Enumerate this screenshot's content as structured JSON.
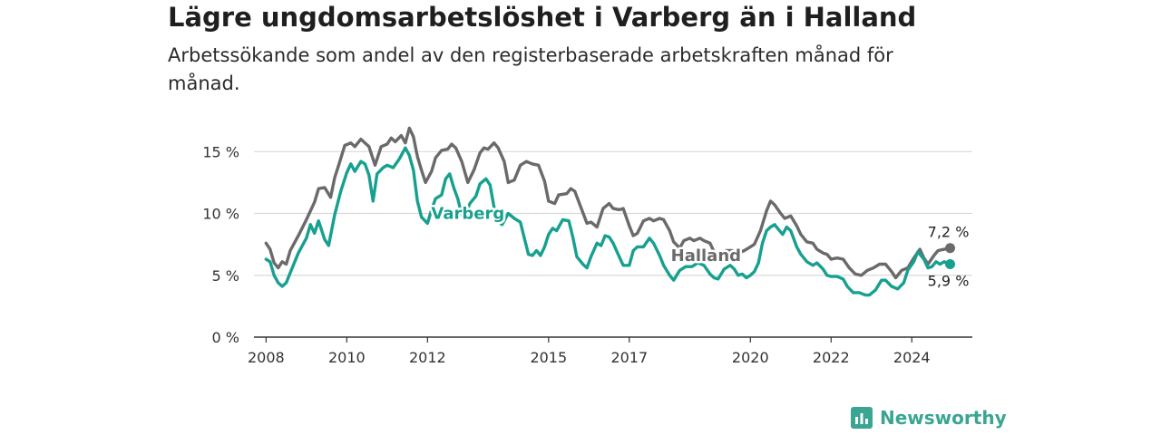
{
  "title": "Lägre ungdomsarbetslöshet i Varberg än i Halland",
  "subtitle": "Arbetssökande som andel av den registerbaserade arbetskraften månad för månad.",
  "brand": {
    "name": "Newsworthy"
  },
  "colors": {
    "varberg": "#17a08f",
    "halland": "#6a6a6a",
    "grid": "#d9d9d9",
    "axis": "#333333",
    "brand": "#3aa592"
  },
  "chart_data": {
    "type": "line",
    "title": "Lägre ungdomsarbetslöshet i Varberg än i Halland",
    "subtitle": "Arbetssökande som andel av den registerbaserade arbetskraften månad för månad.",
    "ylim": [
      0,
      17
    ],
    "y_ticks": [
      0,
      5,
      10,
      15
    ],
    "y_tick_labels": [
      "0 %",
      "5 %",
      "10 %",
      "15 %"
    ],
    "x_ticks": [
      2008,
      2010,
      2012,
      2015,
      2017,
      2020,
      2022,
      2024
    ],
    "x_tick_labels": [
      "2008",
      "2010",
      "2012",
      "2015",
      "2017",
      "2020",
      "2022",
      "2024"
    ],
    "xlim": [
      2007.7,
      2025.5
    ],
    "grid": true,
    "series": [
      {
        "name": "Halland",
        "end_label": "7,2 %",
        "points": [
          [
            2008.0,
            7.6
          ],
          [
            2008.1,
            7.1
          ],
          [
            2008.2,
            6.0
          ],
          [
            2008.3,
            5.6
          ],
          [
            2008.4,
            6.1
          ],
          [
            2008.5,
            5.9
          ],
          [
            2008.6,
            7.0
          ],
          [
            2008.8,
            8.2
          ],
          [
            2009.0,
            9.5
          ],
          [
            2009.2,
            10.9
          ],
          [
            2009.3,
            12.0
          ],
          [
            2009.45,
            12.1
          ],
          [
            2009.6,
            11.3
          ],
          [
            2009.7,
            12.9
          ],
          [
            2009.8,
            13.9
          ],
          [
            2009.95,
            15.5
          ],
          [
            2010.1,
            15.7
          ],
          [
            2010.2,
            15.4
          ],
          [
            2010.35,
            16.0
          ],
          [
            2010.45,
            15.7
          ],
          [
            2010.55,
            15.4
          ],
          [
            2010.7,
            13.9
          ],
          [
            2010.85,
            15.4
          ],
          [
            2011.0,
            15.6
          ],
          [
            2011.1,
            16.1
          ],
          [
            2011.2,
            15.8
          ],
          [
            2011.35,
            16.3
          ],
          [
            2011.45,
            15.7
          ],
          [
            2011.55,
            16.9
          ],
          [
            2011.65,
            16.2
          ],
          [
            2011.75,
            14.6
          ],
          [
            2011.85,
            13.5
          ],
          [
            2011.95,
            12.5
          ],
          [
            2012.1,
            13.4
          ],
          [
            2012.2,
            14.5
          ],
          [
            2012.35,
            15.1
          ],
          [
            2012.5,
            15.2
          ],
          [
            2012.6,
            15.6
          ],
          [
            2012.7,
            15.3
          ],
          [
            2012.85,
            14.2
          ],
          [
            2013.0,
            12.5
          ],
          [
            2013.15,
            13.5
          ],
          [
            2013.3,
            14.9
          ],
          [
            2013.4,
            15.3
          ],
          [
            2013.5,
            15.2
          ],
          [
            2013.65,
            15.7
          ],
          [
            2013.75,
            15.3
          ],
          [
            2013.9,
            14.2
          ],
          [
            2014.0,
            12.5
          ],
          [
            2014.15,
            12.7
          ],
          [
            2014.3,
            13.9
          ],
          [
            2014.45,
            14.2
          ],
          [
            2014.6,
            14.0
          ],
          [
            2014.75,
            13.9
          ],
          [
            2014.9,
            12.6
          ],
          [
            2015.0,
            11.0
          ],
          [
            2015.15,
            10.8
          ],
          [
            2015.25,
            11.5
          ],
          [
            2015.45,
            11.6
          ],
          [
            2015.55,
            12.0
          ],
          [
            2015.65,
            11.8
          ],
          [
            2015.8,
            10.5
          ],
          [
            2015.95,
            9.2
          ],
          [
            2016.05,
            9.3
          ],
          [
            2016.2,
            8.9
          ],
          [
            2016.35,
            10.4
          ],
          [
            2016.5,
            10.8
          ],
          [
            2016.6,
            10.4
          ],
          [
            2016.75,
            10.3
          ],
          [
            2016.85,
            10.4
          ],
          [
            2017.0,
            9.0
          ],
          [
            2017.1,
            8.2
          ],
          [
            2017.2,
            8.4
          ],
          [
            2017.35,
            9.4
          ],
          [
            2017.5,
            9.6
          ],
          [
            2017.6,
            9.4
          ],
          [
            2017.75,
            9.6
          ],
          [
            2017.85,
            9.5
          ],
          [
            2018.0,
            8.6
          ],
          [
            2018.1,
            7.7
          ],
          [
            2018.25,
            7.2
          ],
          [
            2018.35,
            7.8
          ],
          [
            2018.5,
            8.0
          ],
          [
            2018.6,
            7.8
          ],
          [
            2018.75,
            8.0
          ],
          [
            2018.85,
            7.8
          ],
          [
            2019.0,
            7.6
          ],
          [
            2019.1,
            6.9
          ],
          [
            2019.25,
            6.6
          ],
          [
            2019.4,
            7.0
          ],
          [
            2019.55,
            7.0
          ],
          [
            2019.7,
            6.8
          ],
          [
            2019.85,
            7.0
          ],
          [
            2020.0,
            7.3
          ],
          [
            2020.1,
            7.5
          ],
          [
            2020.25,
            8.6
          ],
          [
            2020.4,
            10.2
          ],
          [
            2020.5,
            11.0
          ],
          [
            2020.6,
            10.7
          ],
          [
            2020.75,
            10.0
          ],
          [
            2020.85,
            9.6
          ],
          [
            2021.0,
            9.8
          ],
          [
            2021.15,
            9.0
          ],
          [
            2021.25,
            8.3
          ],
          [
            2021.4,
            7.7
          ],
          [
            2021.55,
            7.6
          ],
          [
            2021.65,
            7.1
          ],
          [
            2021.8,
            6.8
          ],
          [
            2021.9,
            6.7
          ],
          [
            2022.0,
            6.3
          ],
          [
            2022.15,
            6.4
          ],
          [
            2022.3,
            6.3
          ],
          [
            2022.45,
            5.6
          ],
          [
            2022.6,
            5.1
          ],
          [
            2022.75,
            5.0
          ],
          [
            2022.9,
            5.4
          ],
          [
            2023.05,
            5.6
          ],
          [
            2023.2,
            5.9
          ],
          [
            2023.35,
            5.9
          ],
          [
            2023.5,
            5.3
          ],
          [
            2023.6,
            4.8
          ],
          [
            2023.75,
            5.4
          ],
          [
            2023.9,
            5.6
          ],
          [
            2024.05,
            6.4
          ],
          [
            2024.2,
            7.1
          ],
          [
            2024.3,
            6.4
          ],
          [
            2024.4,
            5.9
          ],
          [
            2024.55,
            6.6
          ],
          [
            2024.65,
            7.0
          ],
          [
            2024.8,
            7.1
          ],
          [
            2024.95,
            7.2
          ]
        ]
      },
      {
        "name": "Varberg",
        "end_label": "5,9 %",
        "points": [
          [
            2008.0,
            6.3
          ],
          [
            2008.1,
            6.1
          ],
          [
            2008.2,
            5.0
          ],
          [
            2008.3,
            4.4
          ],
          [
            2008.4,
            4.1
          ],
          [
            2008.5,
            4.4
          ],
          [
            2008.6,
            5.2
          ],
          [
            2008.8,
            6.8
          ],
          [
            2009.0,
            8.0
          ],
          [
            2009.1,
            9.1
          ],
          [
            2009.2,
            8.4
          ],
          [
            2009.3,
            9.4
          ],
          [
            2009.45,
            7.9
          ],
          [
            2009.55,
            7.4
          ],
          [
            2009.7,
            9.9
          ],
          [
            2009.85,
            11.8
          ],
          [
            2010.0,
            13.3
          ],
          [
            2010.1,
            14.0
          ],
          [
            2010.2,
            13.4
          ],
          [
            2010.35,
            14.2
          ],
          [
            2010.45,
            14.0
          ],
          [
            2010.55,
            13.1
          ],
          [
            2010.65,
            11.0
          ],
          [
            2010.75,
            13.2
          ],
          [
            2010.9,
            13.7
          ],
          [
            2011.0,
            13.9
          ],
          [
            2011.15,
            13.7
          ],
          [
            2011.3,
            14.4
          ],
          [
            2011.45,
            15.3
          ],
          [
            2011.55,
            14.7
          ],
          [
            2011.65,
            13.5
          ],
          [
            2011.75,
            11.0
          ],
          [
            2011.85,
            9.7
          ],
          [
            2012.0,
            9.2
          ],
          [
            2012.1,
            10.3
          ],
          [
            2012.2,
            11.2
          ],
          [
            2012.35,
            11.5
          ],
          [
            2012.45,
            12.8
          ],
          [
            2012.55,
            13.2
          ],
          [
            2012.65,
            12.1
          ],
          [
            2012.75,
            11.2
          ],
          [
            2012.85,
            9.9
          ],
          [
            2012.95,
            10.0
          ],
          [
            2013.05,
            10.8
          ],
          [
            2013.2,
            11.4
          ],
          [
            2013.3,
            12.4
          ],
          [
            2013.45,
            12.8
          ],
          [
            2013.55,
            12.3
          ],
          [
            2013.65,
            10.5
          ],
          [
            2013.75,
            9.3
          ],
          [
            2013.85,
            9.1
          ],
          [
            2014.0,
            10.0
          ],
          [
            2014.15,
            9.6
          ],
          [
            2014.3,
            9.3
          ],
          [
            2014.4,
            8.0
          ],
          [
            2014.5,
            6.7
          ],
          [
            2014.6,
            6.6
          ],
          [
            2014.7,
            7.0
          ],
          [
            2014.8,
            6.6
          ],
          [
            2014.9,
            7.3
          ],
          [
            2015.0,
            8.3
          ],
          [
            2015.1,
            8.8
          ],
          [
            2015.2,
            8.6
          ],
          [
            2015.35,
            9.5
          ],
          [
            2015.5,
            9.4
          ],
          [
            2015.6,
            8.1
          ],
          [
            2015.7,
            6.5
          ],
          [
            2015.85,
            5.9
          ],
          [
            2015.95,
            5.6
          ],
          [
            2016.05,
            6.5
          ],
          [
            2016.2,
            7.6
          ],
          [
            2016.3,
            7.4
          ],
          [
            2016.4,
            8.2
          ],
          [
            2016.5,
            8.1
          ],
          [
            2016.6,
            7.6
          ],
          [
            2016.75,
            6.5
          ],
          [
            2016.85,
            5.8
          ],
          [
            2017.0,
            5.8
          ],
          [
            2017.1,
            7.0
          ],
          [
            2017.2,
            7.3
          ],
          [
            2017.35,
            7.3
          ],
          [
            2017.5,
            8.0
          ],
          [
            2017.6,
            7.6
          ],
          [
            2017.75,
            6.6
          ],
          [
            2017.85,
            5.8
          ],
          [
            2018.0,
            5.0
          ],
          [
            2018.1,
            4.6
          ],
          [
            2018.25,
            5.4
          ],
          [
            2018.4,
            5.7
          ],
          [
            2018.55,
            5.7
          ],
          [
            2018.7,
            6.0
          ],
          [
            2018.85,
            5.8
          ],
          [
            2019.0,
            5.1
          ],
          [
            2019.1,
            4.8
          ],
          [
            2019.2,
            4.7
          ],
          [
            2019.35,
            5.5
          ],
          [
            2019.5,
            5.8
          ],
          [
            2019.6,
            5.5
          ],
          [
            2019.7,
            5.0
          ],
          [
            2019.8,
            5.1
          ],
          [
            2019.9,
            4.8
          ],
          [
            2020.0,
            5.0
          ],
          [
            2020.1,
            5.3
          ],
          [
            2020.2,
            6.0
          ],
          [
            2020.3,
            7.6
          ],
          [
            2020.4,
            8.6
          ],
          [
            2020.5,
            8.9
          ],
          [
            2020.6,
            9.1
          ],
          [
            2020.7,
            8.7
          ],
          [
            2020.8,
            8.3
          ],
          [
            2020.9,
            8.9
          ],
          [
            2021.0,
            8.6
          ],
          [
            2021.15,
            7.3
          ],
          [
            2021.25,
            6.7
          ],
          [
            2021.4,
            6.1
          ],
          [
            2021.55,
            5.8
          ],
          [
            2021.65,
            6.0
          ],
          [
            2021.8,
            5.5
          ],
          [
            2021.9,
            5.0
          ],
          [
            2022.0,
            4.9
          ],
          [
            2022.15,
            4.9
          ],
          [
            2022.3,
            4.7
          ],
          [
            2022.4,
            4.1
          ],
          [
            2022.55,
            3.6
          ],
          [
            2022.7,
            3.6
          ],
          [
            2022.85,
            3.4
          ],
          [
            2022.95,
            3.4
          ],
          [
            2023.1,
            3.8
          ],
          [
            2023.25,
            4.6
          ],
          [
            2023.35,
            4.6
          ],
          [
            2023.5,
            4.1
          ],
          [
            2023.65,
            3.9
          ],
          [
            2023.8,
            4.4
          ],
          [
            2023.9,
            5.4
          ],
          [
            2024.05,
            6.1
          ],
          [
            2024.15,
            6.9
          ],
          [
            2024.3,
            6.3
          ],
          [
            2024.4,
            5.6
          ],
          [
            2024.5,
            5.7
          ],
          [
            2024.6,
            6.1
          ],
          [
            2024.7,
            5.9
          ],
          [
            2024.8,
            6.1
          ],
          [
            2024.95,
            5.9
          ]
        ]
      }
    ]
  }
}
